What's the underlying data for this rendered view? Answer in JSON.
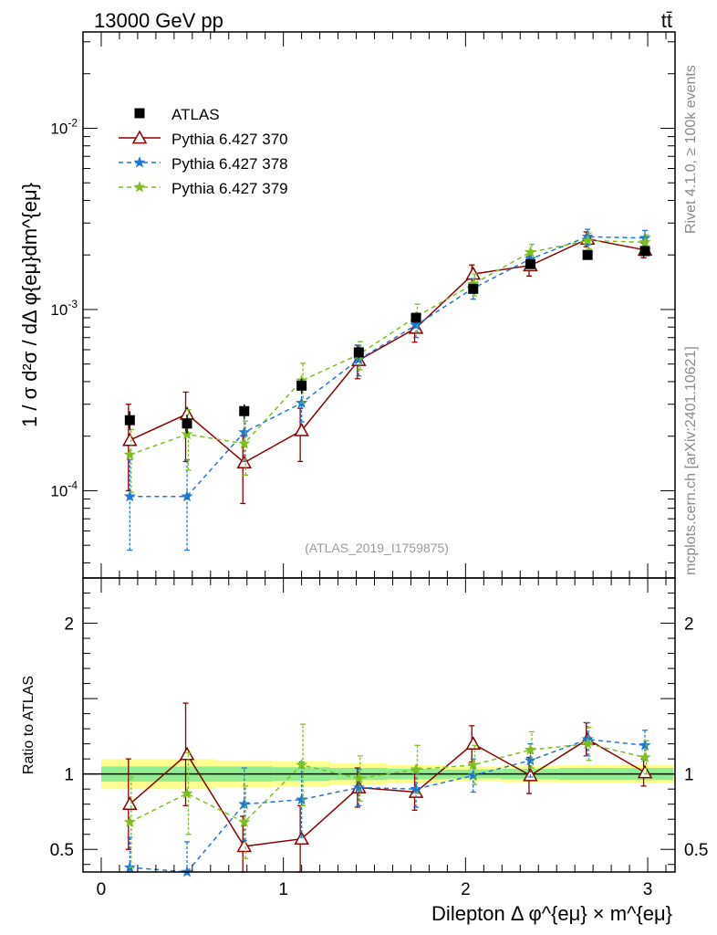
{
  "header": {
    "energy_label": "13000 GeV pp",
    "process_label": "tt̄",
    "analysis_id": "(ATLAS_2019_I1759875)",
    "side_label_top": "Rivet 4.1.0, ≥ 100k events",
    "side_label_bottom": "mcplots.cern.ch [arXiv:2401.10621]"
  },
  "chart_data": {
    "type": "line",
    "title": "13000 GeV pp",
    "xlabel": "Dilepton Δ φ^{eμ} × m^{eμ}",
    "ylabel_main": "1 / σ  d²σ / dΔ φ{eμ}dm^{eμ}",
    "ylabel_ratio": "Ratio to ATLAS",
    "xlim": [
      -0.1,
      3.15
    ],
    "ylim_main": [
      3.3e-05,
      0.034
    ],
    "yscale_main": "log",
    "ylim_ratio": [
      0.35,
      2.3
    ],
    "x_ticks": [
      "0",
      "1",
      "2",
      "3"
    ],
    "y_ticks_main": [
      "10^{-4}",
      "10^{-3}",
      "10^{-2}"
    ],
    "y_ticks_ratio": [
      "0.5",
      "1",
      "2"
    ],
    "x": [
      0.157,
      0.471,
      0.785,
      1.1,
      1.414,
      1.728,
      2.042,
      2.356,
      2.67,
      2.985
    ],
    "data": {
      "name": "ATLAS",
      "values": [
        0.000245,
        0.000235,
        0.000275,
        0.00038,
        0.00058,
        0.0009,
        0.0013,
        0.00178,
        0.002,
        0.0021
      ],
      "rel_err": [
        0.12,
        0.12,
        0.09,
        0.09,
        0.07,
        0.06,
        0.05,
        0.06,
        0.06,
        0.06
      ]
    },
    "series": [
      {
        "name": "Pythia 6.427 370",
        "color": "#8b0000",
        "style": "solid",
        "marker": "open-triangle",
        "values": [
          0.00019,
          0.000265,
          0.000143,
          0.000215,
          0.000525,
          0.00079,
          0.00157,
          0.00175,
          0.00245,
          0.00213
        ],
        "err_lo": [
          9e-05,
          0.00012,
          5.8e-05,
          7e-05,
          0.00011,
          0.00013,
          0.00019,
          0.00022,
          0.00023,
          0.0002
        ],
        "err_hi": [
          0.00011,
          8.5e-05,
          5.8e-05,
          7e-05,
          0.00011,
          0.00013,
          0.00019,
          0.00022,
          0.00023,
          0.0002
        ],
        "ratio": [
          0.8,
          1.13,
          0.52,
          0.57,
          0.91,
          0.88,
          1.2,
          0.99,
          1.23,
          1.01
        ],
        "ratio_err_lo": [
          0.3,
          0.34,
          0.2,
          0.22,
          0.13,
          0.12,
          0.12,
          0.12,
          0.11,
          0.09
        ],
        "ratio_err_hi": [
          0.3,
          0.34,
          0.2,
          0.22,
          0.13,
          0.12,
          0.12,
          0.12,
          0.11,
          0.09
        ]
      },
      {
        "name": "Pythia 6.427 378",
        "color": "#1f77d4",
        "style": "dashed",
        "marker": "star",
        "values": [
          9.3e-05,
          9.3e-05,
          0.00021,
          0.000305,
          0.00053,
          0.00082,
          0.00131,
          0.0019,
          0.00252,
          0.00248
        ],
        "err_lo": [
          4.6e-05,
          4.6e-05,
          6.5e-05,
          6.5e-05,
          0.0001,
          0.00012,
          0.00017,
          0.0002,
          0.00025,
          0.00025
        ],
        "err_hi": [
          5.5e-05,
          5.5e-05,
          6.5e-05,
          6.5e-05,
          0.0001,
          0.00012,
          0.00017,
          0.0002,
          0.00025,
          0.00025
        ],
        "ratio": [
          0.38,
          0.35,
          0.8,
          0.83,
          0.91,
          0.9,
          0.99,
          1.09,
          1.23,
          1.19
        ],
        "ratio_err_lo": [
          0.2,
          0.2,
          0.24,
          0.25,
          0.12,
          0.12,
          0.11,
          0.11,
          0.11,
          0.1
        ],
        "ratio_err_hi": [
          0.2,
          0.2,
          0.24,
          0.25,
          0.12,
          0.12,
          0.11,
          0.11,
          0.11,
          0.1
        ]
      },
      {
        "name": "Pythia 6.427 379",
        "color": "#7cbf1f",
        "style": "dashed",
        "marker": "star",
        "values": [
          0.000158,
          0.000205,
          0.000182,
          0.000405,
          0.000565,
          0.00091,
          0.00138,
          0.00207,
          0.0024,
          0.00235
        ],
        "err_lo": [
          6e-05,
          7.5e-05,
          6e-05,
          0.0001,
          0.0001,
          0.00016,
          0.00019,
          0.00022,
          0.00024,
          0.00023
        ],
        "err_hi": [
          6e-05,
          7.5e-05,
          6e-05,
          0.0001,
          0.0001,
          0.00016,
          0.00019,
          0.00022,
          0.00024,
          0.00023
        ],
        "ratio": [
          0.68,
          0.87,
          0.68,
          1.06,
          0.97,
          1.03,
          1.06,
          1.16,
          1.2,
          1.11
        ],
        "ratio_err_lo": [
          0.3,
          0.27,
          0.24,
          0.27,
          0.15,
          0.16,
          0.13,
          0.12,
          0.11,
          0.11
        ],
        "ratio_err_hi": [
          0.3,
          0.27,
          0.24,
          0.27,
          0.15,
          0.16,
          0.13,
          0.12,
          0.11,
          0.11
        ]
      }
    ],
    "ratio_band": {
      "stat_half_width": [
        0.05,
        0.05,
        0.05,
        0.045,
        0.04,
        0.035,
        0.03,
        0.035,
        0.04,
        0.04
      ],
      "total_half_width": [
        0.1,
        0.1,
        0.09,
        0.085,
        0.07,
        0.06,
        0.05,
        0.055,
        0.06,
        0.06
      ],
      "stat_color": "#90ee90",
      "total_color": "#ffff90"
    }
  }
}
